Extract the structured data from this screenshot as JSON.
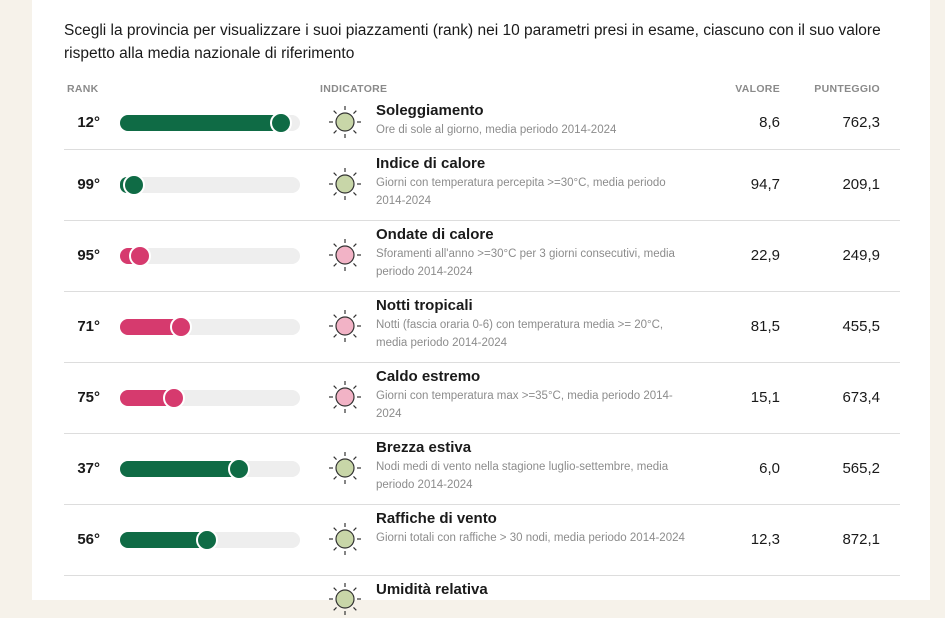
{
  "intro": "Scegli la provincia per visualizzare i suoi piazzamenti (rank) nei 10 parametri presi in esame, ciascuno con il suo valore rispetto alla media nazionale di riferimento",
  "headers": {
    "rank": "RANK",
    "indicator": "INDICATORE",
    "value": "VALORE",
    "score": "PUNTEGGIO"
  },
  "rank_lim": [
    107,
    1
  ],
  "rows": [
    {
      "rank": 12,
      "rank_label": "12°",
      "color": "#0f6b45",
      "title": "Soleggiamento",
      "description": "Ore di sole al giorno, media periodo 2014-2024",
      "value": "8,6",
      "score": "762,3"
    },
    {
      "rank": 99,
      "rank_label": "99°",
      "color": "#0f6b45",
      "title": "Indice di calore",
      "description": "Giorni con temperatura percepita >=30°C, media periodo 2014-2024",
      "value": "94,7",
      "score": "209,1"
    },
    {
      "rank": 95,
      "rank_label": "95°",
      "color": "#d63a6e",
      "title": "Ondate di calore",
      "description": "Sforamenti all'anno >=30°C per 3 giorni consecutivi, media periodo 2014-2024",
      "value": "22,9",
      "score": "249,9"
    },
    {
      "rank": 71,
      "rank_label": "71°",
      "color": "#d63a6e",
      "title": "Notti tropicali",
      "description": "Notti (fascia oraria 0-6) con temperatura media >= 20°C, media periodo 2014-2024",
      "value": "81,5",
      "score": "455,5"
    },
    {
      "rank": 75,
      "rank_label": "75°",
      "color": "#d63a6e",
      "title": "Caldo estremo",
      "description": "Giorni con temperatura max >=35°C, media periodo 2014-2024",
      "value": "15,1",
      "score": "673,4"
    },
    {
      "rank": 37,
      "rank_label": "37°",
      "color": "#0f6b45",
      "title": "Brezza estiva",
      "description": "Nodi medi di vento nella stagione luglio-settembre, media periodo 2014-2024",
      "value": "6,0",
      "score": "565,2"
    },
    {
      "rank": 56,
      "rank_label": "56°",
      "color": "#0f6b45",
      "title": "Raffiche di vento",
      "description": "Giorni totali con raffiche > 30 nodi, media periodo 2014-2024",
      "value": "12,3",
      "score": "872,1"
    },
    {
      "title": "Umidità relativa"
    }
  ]
}
